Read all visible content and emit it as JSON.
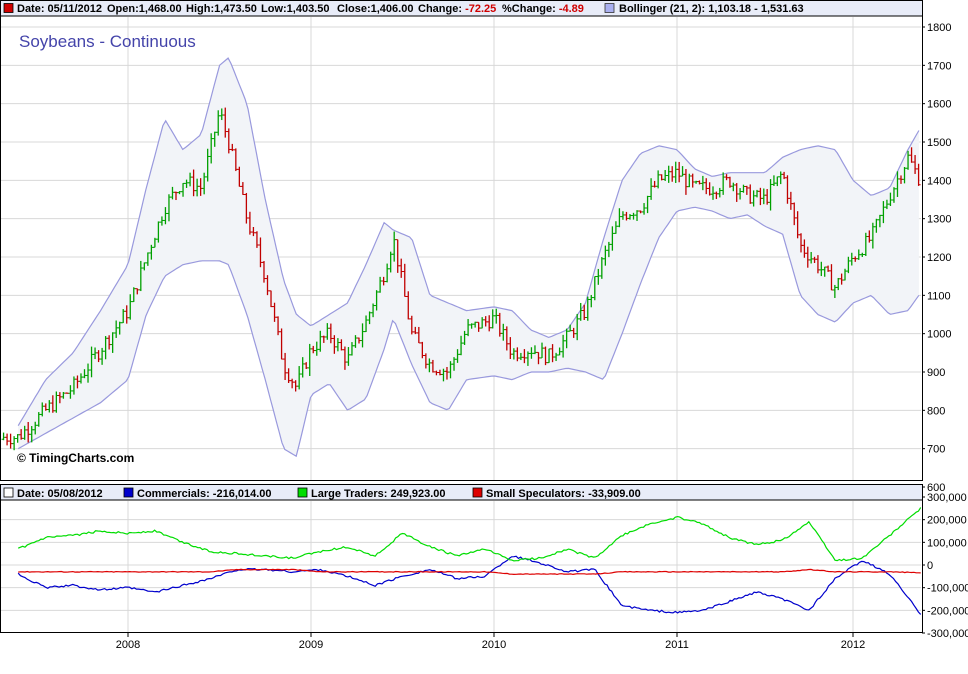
{
  "top_panel": {
    "header": {
      "date_label": "Date: 05/11/2012",
      "open_label": "Open:1,468.00",
      "high_label": "High:1,473.50",
      "low_label": "Low:1,403.50",
      "close_label": "Close:1,406.00",
      "change_prefix": "Change:",
      "change_value": "-72.25",
      "pct_prefix": "%Change:",
      "pct_value": "-4.89",
      "bollinger_label": "Bollinger (21, 2): 1,103.18 - 1,531.63"
    },
    "title": "Soybeans - Continuous",
    "copyright": "© TimingCharts.com"
  },
  "bottom_panel": {
    "header": {
      "date_label": "Date: 05/08/2012",
      "commercials_label": "Commercials: -216,014.00",
      "large_label": "Large Traders: 249,923.00",
      "small_label": "Small Speculators: -33,909.00"
    }
  },
  "colors": {
    "up_bar": "#00a000",
    "down_bar": "#c00000",
    "band": "#9999dd",
    "band_fill": "#f2f4f8",
    "commercials": "#0000cc",
    "large_traders": "#00dd00",
    "small_speculators": "#dd0000",
    "title": "#4444aa",
    "grid": "#d8d8d8"
  },
  "chart_data": [
    {
      "type": "line",
      "subtype": "ohlc_with_bollinger",
      "title": "Soybeans - Continuous",
      "ylim": [
        600,
        1850
      ],
      "y_ticks": [
        600,
        700,
        800,
        900,
        1000,
        1100,
        1200,
        1300,
        1400,
        1500,
        1600,
        1700,
        1800
      ],
      "x_ticks": [
        "2008",
        "2009",
        "2010",
        "2011",
        "2012"
      ],
      "x": [
        2007.4,
        2007.55,
        2007.7,
        2007.85,
        2008.0,
        2008.1,
        2008.2,
        2008.3,
        2008.4,
        2008.5,
        2008.55,
        2008.65,
        2008.75,
        2008.85,
        2008.92,
        2009.0,
        2009.1,
        2009.2,
        2009.3,
        2009.4,
        2009.45,
        2009.55,
        2009.65,
        2009.75,
        2009.85,
        2010.0,
        2010.1,
        2010.2,
        2010.3,
        2010.4,
        2010.5,
        2010.6,
        2010.7,
        2010.8,
        2010.9,
        2011.0,
        2011.1,
        2011.2,
        2011.3,
        2011.4,
        2011.5,
        2011.6,
        2011.7,
        2011.8,
        2011.9,
        2012.0,
        2012.1,
        2012.2,
        2012.3,
        2012.36
      ],
      "series": [
        {
          "name": "Close",
          "values": [
            730,
            800,
            860,
            960,
            1060,
            1200,
            1330,
            1400,
            1380,
            1580,
            1500,
            1300,
            1150,
            920,
            860,
            960,
            1000,
            930,
            1030,
            1160,
            1250,
            1000,
            920,
            900,
            1010,
            1040,
            950,
            960,
            940,
            990,
            1060,
            1200,
            1310,
            1330,
            1400,
            1420,
            1380,
            1380,
            1400,
            1360,
            1350,
            1420,
            1230,
            1180,
            1120,
            1200,
            1250,
            1360,
            1460,
            1406
          ]
        },
        {
          "name": "Bollinger Upper",
          "values": [
            760,
            880,
            950,
            1060,
            1180,
            1380,
            1560,
            1480,
            1520,
            1700,
            1720,
            1600,
            1350,
            1140,
            1050,
            1020,
            1050,
            1080,
            1180,
            1290,
            1270,
            1250,
            1100,
            1080,
            1060,
            1070,
            1060,
            1010,
            990,
            1010,
            1080,
            1250,
            1400,
            1470,
            1490,
            1480,
            1430,
            1410,
            1420,
            1420,
            1420,
            1460,
            1480,
            1490,
            1480,
            1400,
            1360,
            1380,
            1480,
            1530
          ]
        },
        {
          "name": "Bollinger Lower",
          "values": [
            700,
            740,
            780,
            820,
            880,
            1050,
            1150,
            1180,
            1190,
            1190,
            1180,
            1050,
            880,
            700,
            680,
            840,
            870,
            800,
            830,
            960,
            1040,
            920,
            820,
            800,
            880,
            890,
            880,
            900,
            900,
            910,
            900,
            880,
            1000,
            1130,
            1250,
            1320,
            1330,
            1320,
            1300,
            1310,
            1280,
            1260,
            1100,
            1050,
            1030,
            1080,
            1100,
            1050,
            1060,
            1100
          ]
        }
      ]
    },
    {
      "type": "line",
      "title": "",
      "ylim": [
        -300000,
        300000
      ],
      "y_ticks": [
        -300000,
        -200000,
        -100000,
        0,
        100000,
        200000,
        300000
      ],
      "y_tick_labels": [
        "-300,000",
        "-200,000",
        "-100,000",
        "0",
        "100,000",
        "200,000",
        "300,000"
      ],
      "x_ticks": [
        "2008",
        "2009",
        "2010",
        "2011",
        "2012"
      ],
      "x": [
        2007.4,
        2007.55,
        2007.7,
        2007.85,
        2008.0,
        2008.15,
        2008.3,
        2008.45,
        2008.6,
        2008.75,
        2008.9,
        2009.05,
        2009.2,
        2009.35,
        2009.5,
        2009.65,
        2009.8,
        2009.95,
        2010.1,
        2010.25,
        2010.4,
        2010.55,
        2010.7,
        2010.85,
        2011.0,
        2011.15,
        2011.3,
        2011.45,
        2011.6,
        2011.75,
        2011.9,
        2012.05,
        2012.2,
        2012.37
      ],
      "series": [
        {
          "name": "Commercials",
          "values": [
            -40000,
            -100000,
            -90000,
            -110000,
            -100000,
            -120000,
            -90000,
            -60000,
            -20000,
            -20000,
            -30000,
            -20000,
            -50000,
            -90000,
            -50000,
            -20000,
            -60000,
            -50000,
            40000,
            10000,
            -30000,
            -20000,
            -180000,
            -200000,
            -210000,
            -200000,
            -160000,
            -120000,
            -150000,
            -200000,
            -60000,
            20000,
            -40000,
            -216014
          ]
        },
        {
          "name": "Large Traders",
          "values": [
            70000,
            120000,
            130000,
            150000,
            140000,
            150000,
            100000,
            60000,
            50000,
            40000,
            30000,
            60000,
            80000,
            40000,
            140000,
            80000,
            40000,
            70000,
            20000,
            30000,
            70000,
            30000,
            130000,
            180000,
            210000,
            180000,
            120000,
            90000,
            110000,
            190000,
            20000,
            30000,
            130000,
            249923
          ]
        },
        {
          "name": "Small Speculators",
          "values": [
            -30000,
            -30000,
            -30000,
            -30000,
            -30000,
            -30000,
            -30000,
            -30000,
            -20000,
            -20000,
            -20000,
            -30000,
            -30000,
            -30000,
            -30000,
            -30000,
            -30000,
            -30000,
            -40000,
            -40000,
            -40000,
            -40000,
            -30000,
            -30000,
            -30000,
            -30000,
            -30000,
            -30000,
            -30000,
            -20000,
            -30000,
            -30000,
            -30000,
            -33909
          ]
        }
      ]
    }
  ]
}
